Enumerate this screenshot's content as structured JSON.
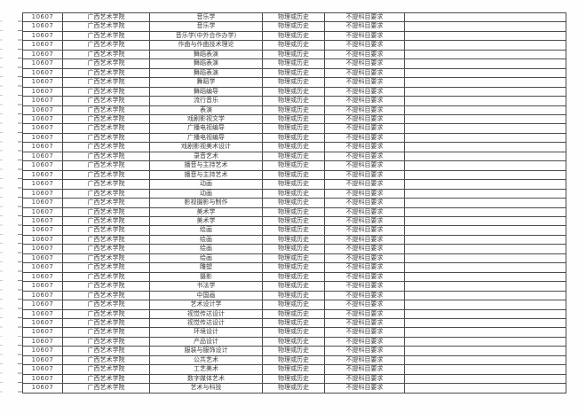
{
  "page": {
    "background": "#fefefe",
    "grid_line_color": "#4c4c4c",
    "text_color": "#414141"
  },
  "table": {
    "column_names": [
      "college-code",
      "college-name",
      "major-name",
      "subject-group",
      "subject-requirement",
      "extra"
    ],
    "rows": [
      [
        "10607",
        "广西艺术学院",
        "音乐学",
        "物理或历史",
        "不提科目要求",
        ""
      ],
      [
        "10607",
        "广西艺术学院",
        "音乐学",
        "物理或历史",
        "不提科目要求",
        ""
      ],
      [
        "10607",
        "广西艺术学院",
        "音乐学(中外合作办学)",
        "物理或历史",
        "不提科目要求",
        ""
      ],
      [
        "10607",
        "广西艺术学院",
        "作曲与作曲技术理论",
        "物理或历史",
        "不提科目要求",
        ""
      ],
      [
        "10607",
        "广西艺术学院",
        "舞蹈表演",
        "物理或历史",
        "不提科目要求",
        ""
      ],
      [
        "10607",
        "广西艺术学院",
        "舞蹈表演",
        "物理或历史",
        "不提科目要求",
        ""
      ],
      [
        "10607",
        "广西艺术学院",
        "舞蹈表演",
        "物理或历史",
        "不提科目要求",
        ""
      ],
      [
        "10607",
        "广西艺术学院",
        "舞蹈学",
        "物理或历史",
        "不提科目要求",
        ""
      ],
      [
        "10607",
        "广西艺术学院",
        "舞蹈编导",
        "物理或历史",
        "不提科目要求",
        ""
      ],
      [
        "10607",
        "广西艺术学院",
        "流行音乐",
        "物理或历史",
        "不提科目要求",
        ""
      ],
      [
        "10607",
        "广西艺术学院",
        "表演",
        "物理或历史",
        "不提科目要求",
        ""
      ],
      [
        "10607",
        "广西艺术学院",
        "戏剧影视文学",
        "物理或历史",
        "不提科目要求",
        ""
      ],
      [
        "10607",
        "广西艺术学院",
        "广播电视编导",
        "物理或历史",
        "不提科目要求",
        ""
      ],
      [
        "10607",
        "广西艺术学院",
        "广播电视编导",
        "物理或历史",
        "不提科目要求",
        ""
      ],
      [
        "10607",
        "广西艺术学院",
        "戏剧影视美术设计",
        "物理或历史",
        "不提科目要求",
        ""
      ],
      [
        "10607",
        "广西艺术学院",
        "录音艺术",
        "物理或历史",
        "不提科目要求",
        ""
      ],
      [
        "10607",
        "广西艺术学院",
        "播音与主持艺术",
        "物理或历史",
        "不提科目要求",
        ""
      ],
      [
        "10607",
        "广西艺术学院",
        "播音与主持艺术",
        "物理或历史",
        "不提科目要求",
        ""
      ],
      [
        "10607",
        "广西艺术学院",
        "动画",
        "物理或历史",
        "不提科目要求",
        ""
      ],
      [
        "10607",
        "广西艺术学院",
        "动画",
        "物理或历史",
        "不提科目要求",
        ""
      ],
      [
        "10607",
        "广西艺术学院",
        "影视摄影与制作",
        "物理或历史",
        "不提科目要求",
        ""
      ],
      [
        "10607",
        "广西艺术学院",
        "美术学",
        "物理或历史",
        "不提科目要求",
        ""
      ],
      [
        "10607",
        "广西艺术学院",
        "美术学",
        "物理或历史",
        "不提科目要求",
        ""
      ],
      [
        "10607",
        "广西艺术学院",
        "绘画",
        "物理或历史",
        "不提科目要求",
        ""
      ],
      [
        "10607",
        "广西艺术学院",
        "绘画",
        "物理或历史",
        "不提科目要求",
        ""
      ],
      [
        "10607",
        "广西艺术学院",
        "绘画",
        "物理或历史",
        "不提科目要求",
        ""
      ],
      [
        "10607",
        "广西艺术学院",
        "绘画",
        "物理或历史",
        "不提科目要求",
        ""
      ],
      [
        "10607",
        "广西艺术学院",
        "雕塑",
        "物理或历史",
        "不提科目要求",
        ""
      ],
      [
        "10607",
        "广西艺术学院",
        "摄影",
        "物理或历史",
        "不提科目要求",
        ""
      ],
      [
        "10607",
        "广西艺术学院",
        "书法学",
        "物理或历史",
        "不提科目要求",
        ""
      ],
      [
        "10607",
        "广西艺术学院",
        "中国画",
        "物理或历史",
        "不提科目要求",
        ""
      ],
      [
        "10607",
        "广西艺术学院",
        "艺术设计学",
        "物理或历史",
        "不提科目要求",
        ""
      ],
      [
        "10607",
        "广西艺术学院",
        "视觉传达设计",
        "物理或历史",
        "不提科目要求",
        ""
      ],
      [
        "10607",
        "广西艺术学院",
        "视觉传达设计",
        "物理或历史",
        "不提科目要求",
        ""
      ],
      [
        "10607",
        "广西艺术学院",
        "环境设计",
        "物理或历史",
        "不提科目要求",
        ""
      ],
      [
        "10607",
        "广西艺术学院",
        "产品设计",
        "物理或历史",
        "不提科目要求",
        ""
      ],
      [
        "10607",
        "广西艺术学院",
        "服装与服饰设计",
        "物理或历史",
        "不提科目要求",
        ""
      ],
      [
        "10607",
        "广西艺术学院",
        "公共艺术",
        "物理或历史",
        "不提科目要求",
        ""
      ],
      [
        "10607",
        "广西艺术学院",
        "工艺美术",
        "物理或历史",
        "不提科目要求",
        ""
      ],
      [
        "10607",
        "广西艺术学院",
        "数字媒体艺术",
        "物理或历史",
        "不提科目要求",
        ""
      ],
      [
        "10607",
        "广西艺术学院",
        "艺术与科技",
        "物理或历史",
        "不提科目要求",
        ""
      ]
    ]
  }
}
